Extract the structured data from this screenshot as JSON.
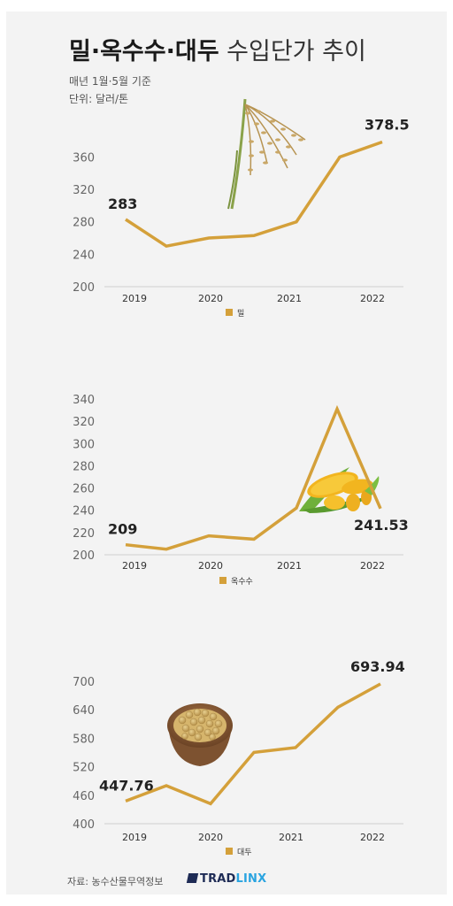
{
  "header": {
    "title_bold": "밀·옥수수·대두",
    "title_rest": "수입단가 추이",
    "note1": "매년 1월·5월 기준",
    "note2": "단위: 달러/톤"
  },
  "footer": {
    "source": "자료: 농수산물무역정보",
    "brand_main": "TRAD",
    "brand_accent": "LINX"
  },
  "colors": {
    "line": "#D4A03A",
    "grid": "#cfcfcf",
    "background": "#f3f3f3"
  },
  "icons": [
    "wheat-illustration",
    "corn-illustration",
    "soybean-bowl-illustration"
  ],
  "chart_data": [
    {
      "type": "line",
      "series": [
        {
          "name": "밀",
          "values": [
            283,
            250,
            260,
            263,
            280,
            360,
            378.5
          ]
        }
      ],
      "x": [
        "2019-01",
        "2019-05",
        "2020-01",
        "2020-05",
        "2021-01",
        "2021-05",
        "2022-01"
      ],
      "tick_labels": [
        "2019",
        "2020",
        "2021",
        "2022"
      ],
      "yticks": [
        200,
        240,
        280,
        320,
        360
      ],
      "ylim": [
        200,
        390
      ],
      "labels": [
        {
          "index": 0,
          "text": "283"
        },
        {
          "index": 6,
          "text": "378.5"
        }
      ],
      "legend": "bottom-center",
      "grid": false
    },
    {
      "type": "line",
      "series": [
        {
          "name": "옥수수",
          "values": [
            209,
            205,
            217,
            214,
            242,
            331,
            241.53
          ]
        }
      ],
      "x": [
        "2019-01",
        "2019-05",
        "2020-01",
        "2020-05",
        "2021-01",
        "2021-05",
        "2022-01"
      ],
      "tick_labels": [
        "2019",
        "2020",
        "2021",
        "2022"
      ],
      "yticks": [
        200,
        220,
        240,
        260,
        280,
        300,
        320,
        340
      ],
      "ylim": [
        200,
        340
      ],
      "labels": [
        {
          "index": 0,
          "text": "209"
        },
        {
          "index": 6,
          "text": "241.53"
        }
      ],
      "legend": "bottom-center",
      "grid": false
    },
    {
      "type": "line",
      "series": [
        {
          "name": "대두",
          "values": [
            447.76,
            480,
            442,
            550,
            560,
            645,
            693.94
          ]
        }
      ],
      "x": [
        "2019-01",
        "2019-05",
        "2020-01",
        "2020-05",
        "2021-01",
        "2021-05",
        "2022-01"
      ],
      "tick_labels": [
        "2019",
        "2020",
        "2021",
        "2022"
      ],
      "yticks": [
        400,
        460,
        520,
        580,
        640,
        700
      ],
      "ylim": [
        400,
        720
      ],
      "labels": [
        {
          "index": 0,
          "text": "447.76"
        },
        {
          "index": 6,
          "text": "693.94"
        }
      ],
      "legend": "bottom-center",
      "grid": false
    }
  ]
}
